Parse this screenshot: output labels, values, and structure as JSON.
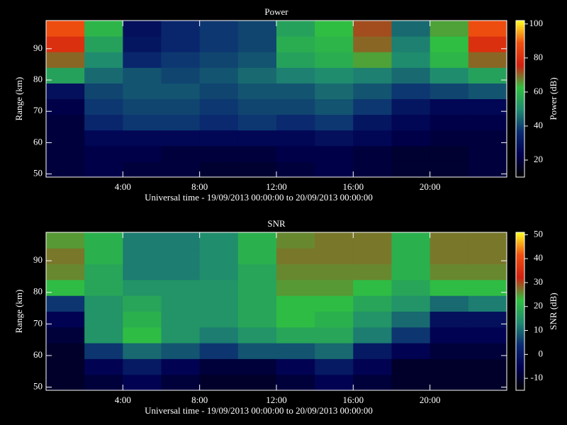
{
  "chart_data": [
    {
      "type": "heatmap",
      "title": "Power",
      "x_label": "Universal time - 19/09/2013 00:00:00 to 20/09/2013 00:00:00",
      "y_label": "Range (km)",
      "xlim": [
        0,
        24
      ],
      "xticks": [
        {
          "value": 4,
          "label": "4:00"
        },
        {
          "value": 8,
          "label": "8:00"
        },
        {
          "value": 12,
          "label": "12:00"
        },
        {
          "value": 16,
          "label": "16:00"
        },
        {
          "value": 20,
          "label": "20:00"
        }
      ],
      "ylim": [
        49,
        99
      ],
      "yticks": [
        50,
        60,
        70,
        80,
        90
      ],
      "xbins": [
        0,
        2,
        4,
        6,
        8,
        10,
        12,
        14,
        16,
        18,
        20,
        22,
        24
      ],
      "ybins": [
        49,
        54,
        59,
        64,
        69,
        74,
        79,
        84,
        89,
        94,
        99
      ],
      "values": [
        [
          20,
          22,
          20,
          20,
          18,
          18,
          20,
          22,
          20,
          18,
          18,
          20
        ],
        [
          20,
          22,
          22,
          20,
          20,
          20,
          22,
          22,
          20,
          18,
          18,
          20
        ],
        [
          20,
          25,
          25,
          25,
          25,
          25,
          25,
          28,
          25,
          22,
          20,
          20
        ],
        [
          20,
          35,
          38,
          38,
          36,
          38,
          36,
          38,
          30,
          25,
          22,
          22
        ],
        [
          22,
          38,
          40,
          40,
          38,
          40,
          40,
          42,
          38,
          30,
          25,
          25
        ],
        [
          28,
          40,
          42,
          42,
          40,
          42,
          42,
          45,
          42,
          38,
          40,
          42
        ],
        [
          55,
          45,
          42,
          40,
          42,
          45,
          48,
          50,
          48,
          45,
          50,
          55
        ],
        [
          70,
          50,
          35,
          38,
          40,
          42,
          55,
          58,
          65,
          50,
          60,
          70
        ],
        [
          80,
          55,
          30,
          35,
          38,
          40,
          58,
          60,
          70,
          48,
          62,
          80
        ],
        [
          88,
          60,
          28,
          35,
          38,
          40,
          55,
          62,
          72,
          45,
          65,
          88
        ]
      ],
      "colorbar": {
        "label": "Power (dB)",
        "lim": [
          10,
          102
        ],
        "ticks": [
          20,
          40,
          60,
          80,
          100
        ]
      },
      "colormap": [
        "#000000",
        "#000050",
        "#0a2a70",
        "#1f8a70",
        "#30c040",
        "#d02010",
        "#f05010",
        "#ffff20"
      ]
    },
    {
      "type": "heatmap",
      "title": "SNR",
      "x_label": "Universal time - 19/09/2013 00:00:00 to 20/09/2013 00:00:00",
      "y_label": "Range (km)",
      "xlim": [
        0,
        24
      ],
      "xticks": [
        {
          "value": 4,
          "label": "4:00"
        },
        {
          "value": 8,
          "label": "8:00"
        },
        {
          "value": 12,
          "label": "12:00"
        },
        {
          "value": 16,
          "label": "16:00"
        },
        {
          "value": 20,
          "label": "20:00"
        }
      ],
      "ylim": [
        49,
        99
      ],
      "yticks": [
        50,
        60,
        70,
        80,
        90
      ],
      "xbins": [
        0,
        2,
        4,
        6,
        8,
        10,
        12,
        14,
        16,
        18,
        20,
        22,
        24
      ],
      "ybins": [
        49,
        54,
        59,
        64,
        69,
        74,
        79,
        84,
        89,
        94,
        99
      ],
      "values": [
        [
          -10,
          -8,
          -5,
          -8,
          -10,
          -10,
          -8,
          -5,
          -8,
          -10,
          -10,
          -10
        ],
        [
          -10,
          -5,
          0,
          -5,
          -8,
          -8,
          -5,
          0,
          -5,
          -10,
          -10,
          -10
        ],
        [
          -10,
          5,
          10,
          8,
          5,
          8,
          8,
          10,
          0,
          -5,
          -8,
          -8
        ],
        [
          -8,
          15,
          22,
          15,
          12,
          15,
          18,
          18,
          12,
          5,
          -5,
          -5
        ],
        [
          -5,
          15,
          20,
          15,
          15,
          18,
          22,
          20,
          15,
          10,
          -2,
          -2
        ],
        [
          5,
          15,
          18,
          15,
          15,
          18,
          22,
          22,
          18,
          15,
          10,
          12
        ],
        [
          22,
          18,
          15,
          15,
          15,
          18,
          25,
          25,
          22,
          18,
          22,
          22
        ],
        [
          26,
          18,
          12,
          12,
          14,
          18,
          26,
          26,
          26,
          20,
          26,
          26
        ],
        [
          27,
          20,
          12,
          12,
          14,
          20,
          27,
          27,
          27,
          20,
          27,
          27
        ],
        [
          25,
          20,
          12,
          12,
          14,
          20,
          26,
          27,
          27,
          20,
          27,
          27
        ]
      ],
      "colorbar": {
        "label": "SNR (dB)",
        "lim": [
          -15,
          51
        ],
        "ticks": [
          -10,
          0,
          10,
          20,
          30,
          40,
          50
        ]
      },
      "colormap": [
        "#000000",
        "#000050",
        "#0a2a70",
        "#1f8a70",
        "#30c040",
        "#d02010",
        "#f05010",
        "#ffff20"
      ]
    }
  ]
}
